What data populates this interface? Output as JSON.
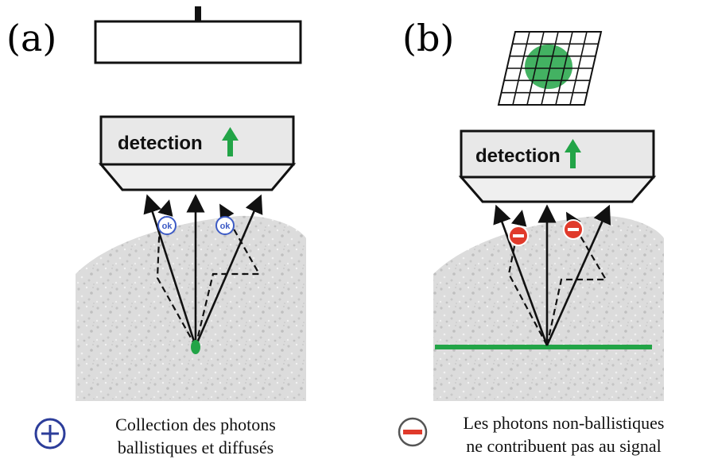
{
  "panels": {
    "a": {
      "label": "(a)",
      "detector_label": "detection",
      "badge_label": "ok",
      "caption_line1": "Collection des photons",
      "caption_line2": "ballistiques et diffusés",
      "caption_icon": "plus-circle-icon"
    },
    "b": {
      "label": "(b)",
      "detector_label": "detection",
      "badge_label": "−",
      "caption_line1": "Les photons non-ballistiques",
      "caption_line2": "ne contribuent pas au signal",
      "caption_icon": "minus-circle-icon"
    }
  },
  "colors": {
    "green": "#22a447",
    "ok_badge": "#3d5bc5",
    "minus_badge": "#e03a2b",
    "tissue": "#dedede"
  }
}
